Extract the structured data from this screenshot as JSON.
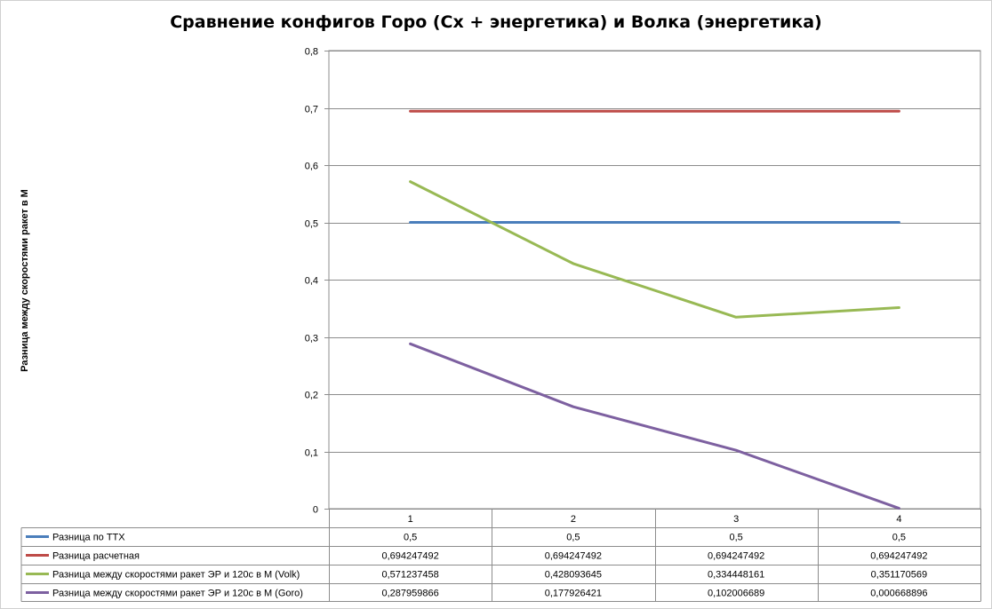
{
  "chart_data": {
    "type": "line",
    "title": "Сравнение конфигов Горо (Cx + энергетика) и Волка (энергетика)",
    "ylabel": "Разница между скоростями ракет в М",
    "xlabel": "",
    "ylim": [
      0,
      0.8
    ],
    "y_ticks": [
      "0",
      "0,1",
      "0,2",
      "0,3",
      "0,4",
      "0,5",
      "0,6",
      "0,7",
      "0,8"
    ],
    "categories": [
      "1",
      "2",
      "3",
      "4"
    ],
    "grid": true,
    "legend": "data-table-below",
    "series": [
      {
        "name": "Разница по ТТХ",
        "color": "#4a7ebb",
        "values": [
          0.5,
          0.5,
          0.5,
          0.5
        ],
        "labels": [
          "0,5",
          "0,5",
          "0,5",
          "0,5"
        ]
      },
      {
        "name": "Разница расчетная",
        "color": "#be4b48",
        "values": [
          0.694247492,
          0.694247492,
          0.694247492,
          0.694247492
        ],
        "labels": [
          "0,694247492",
          "0,694247492",
          "0,694247492",
          "0,694247492"
        ]
      },
      {
        "name": "Разница между скоростями ракет ЭР и 120с в М (Volk)",
        "color": "#98b954",
        "values": [
          0.571237458,
          0.428093645,
          0.334448161,
          0.351170569
        ],
        "labels": [
          "0,571237458",
          "0,428093645",
          "0,334448161",
          "0,351170569"
        ]
      },
      {
        "name": "Разница между скоростями ракет ЭР и 120с в М (Goro)",
        "color": "#7d60a0",
        "values": [
          0.287959866,
          0.177926421,
          0.102006689,
          0.000668896
        ],
        "labels": [
          "0,287959866",
          "0,177926421",
          "0,102006689",
          "0,000668896"
        ]
      }
    ]
  }
}
